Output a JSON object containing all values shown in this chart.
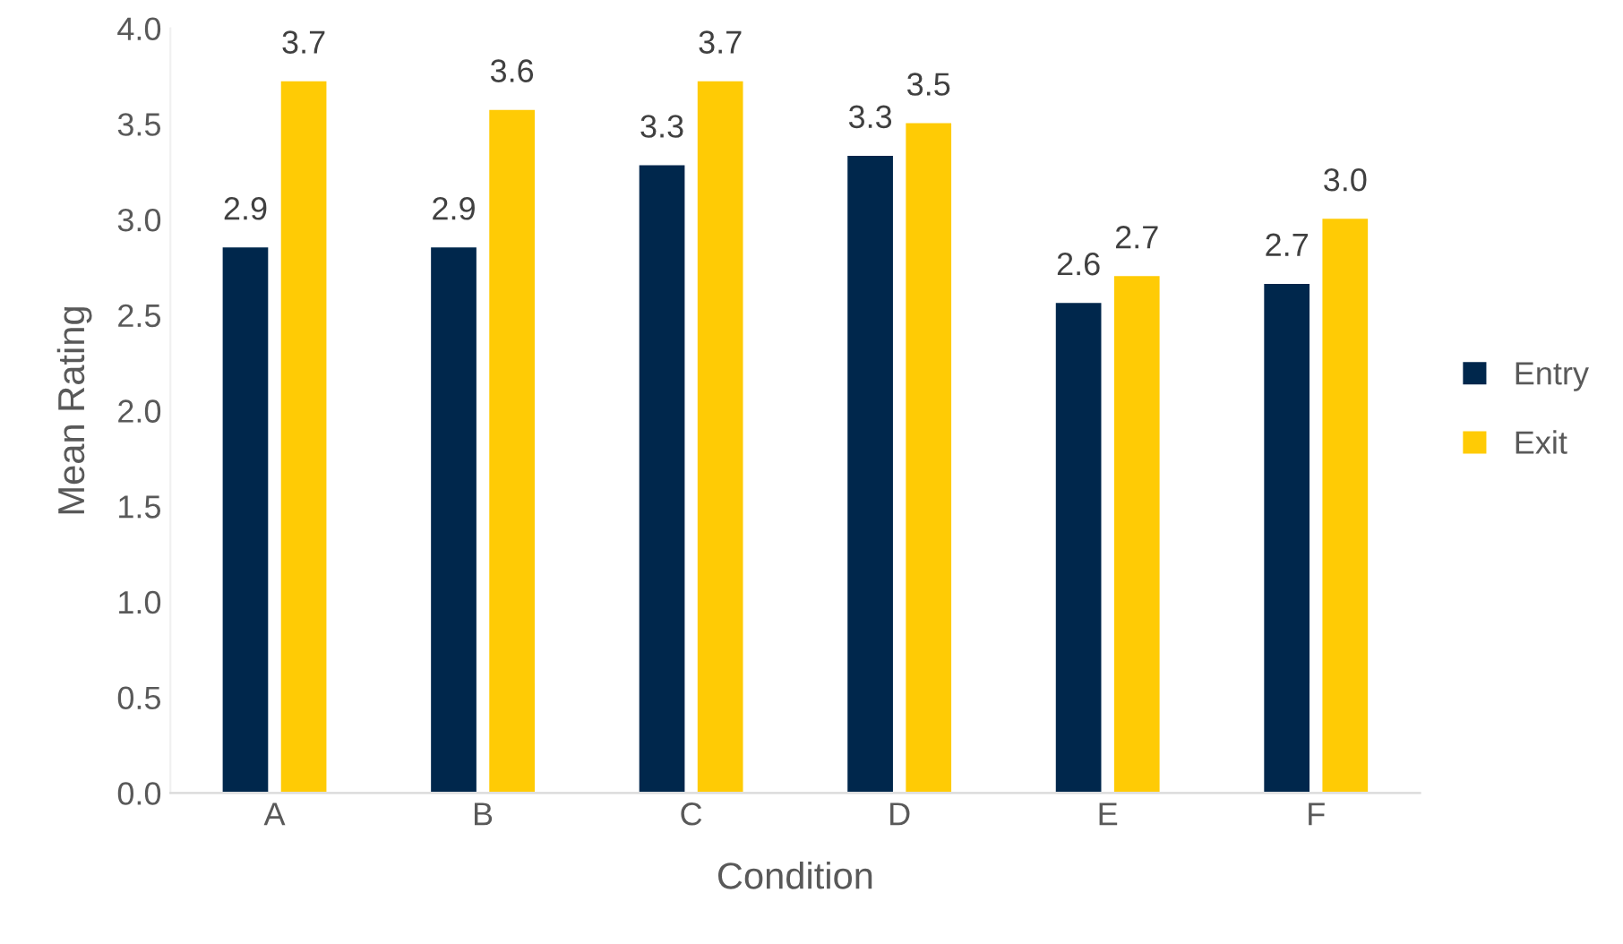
{
  "chart_data": {
    "type": "bar",
    "xlabel": "Condition",
    "ylabel": "Mean Rating",
    "categories": [
      "A",
      "B",
      "C",
      "D",
      "E",
      "F"
    ],
    "series": [
      {
        "name": "Entry",
        "color": "#00274c",
        "values": [
          2.86,
          2.86,
          3.29,
          3.34,
          2.57,
          2.67
        ],
        "value_labels": [
          "2.9",
          "2.9",
          "3.3",
          "3.3",
          "2.6",
          "2.7"
        ]
      },
      {
        "name": "Exit",
        "color": "#ffcb05",
        "values": [
          3.73,
          3.58,
          3.73,
          3.51,
          2.71,
          3.01
        ],
        "value_labels": [
          "3.7",
          "3.6",
          "3.7",
          "3.5",
          "2.7",
          "3.0"
        ]
      }
    ],
    "ylim": [
      0,
      4
    ],
    "yticks": [
      {
        "value": 0,
        "label": "0.0"
      },
      {
        "value": 0.5,
        "label": "0.5"
      },
      {
        "value": 1,
        "label": "1.0"
      },
      {
        "value": 1.5,
        "label": "1.5"
      },
      {
        "value": 2,
        "label": "2.0"
      },
      {
        "value": 2.5,
        "label": "2.5"
      },
      {
        "value": 3,
        "label": "3.0"
      },
      {
        "value": 3.5,
        "label": "3.5"
      },
      {
        "value": 4,
        "label": "4.0"
      }
    ],
    "grid": false,
    "legend": "right"
  }
}
